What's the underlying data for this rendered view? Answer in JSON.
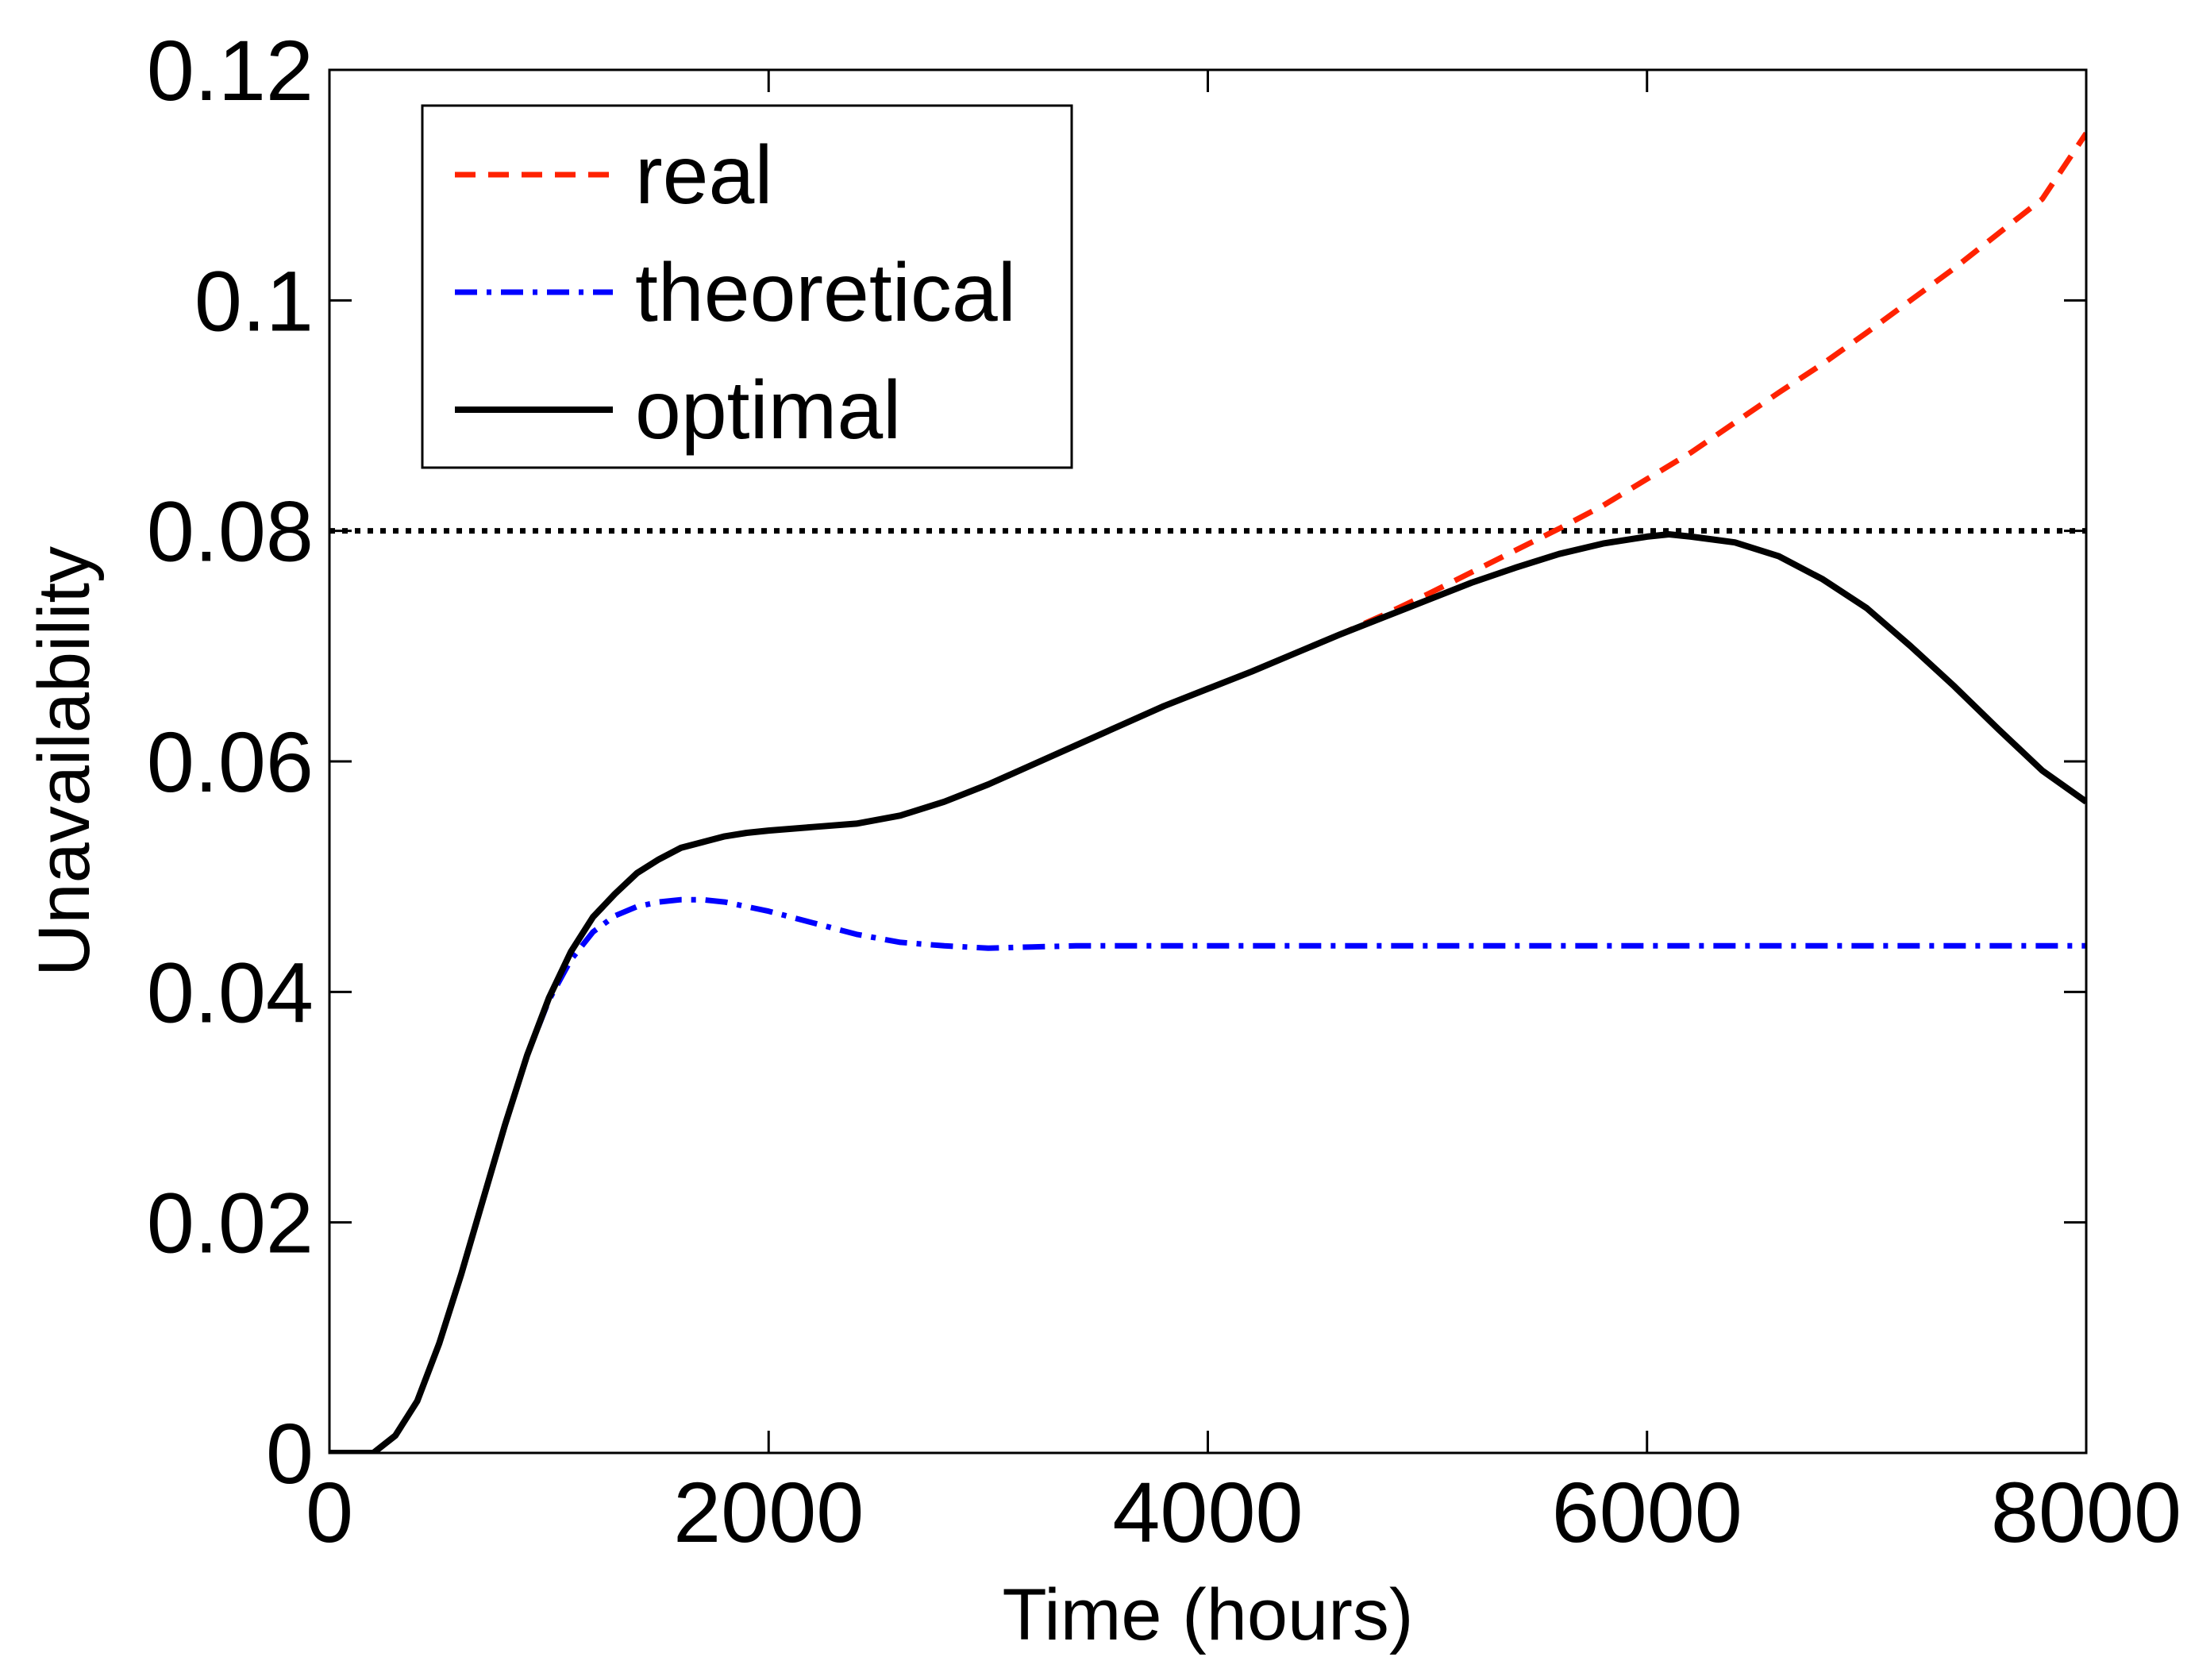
{
  "chart_data": {
    "type": "line",
    "title": "",
    "xlabel": "Time (hours)",
    "ylabel": "Unavailability",
    "xlim": [
      0,
      8000
    ],
    "ylim": [
      0,
      0.12
    ],
    "xticks": [
      0,
      2000,
      4000,
      6000,
      8000
    ],
    "xtick_labels": [
      "0",
      "2000",
      "4000",
      "6000",
      "8000"
    ],
    "yticks": [
      0,
      0.02,
      0.04,
      0.06,
      0.08,
      0.1,
      0.12
    ],
    "ytick_labels": [
      "0",
      "0.02",
      "0.04",
      "0.06",
      "0.08",
      "0.1",
      "0.12"
    ],
    "grid": false,
    "legend_position": "top-left",
    "threshold": {
      "y": 0.08,
      "style": "dotted",
      "color": "#000000"
    },
    "series": [
      {
        "name": "real",
        "color": "#ff2200",
        "style": "dashed",
        "x": [
          0,
          100,
          200,
          300,
          400,
          500,
          600,
          700,
          800,
          900,
          1000,
          1100,
          1200,
          1300,
          1400,
          1500,
          1600,
          1700,
          1800,
          1900,
          2000,
          2200,
          2400,
          2600,
          2800,
          3000,
          3200,
          3400,
          3600,
          3800,
          4000,
          4200,
          4400,
          4600,
          4800,
          5000,
          5200,
          5400,
          5600,
          5800,
          6000,
          6200,
          6400,
          6600,
          6800,
          7000,
          7200,
          7400,
          7600,
          7800,
          8000
        ],
        "y": [
          0,
          0,
          0,
          0.0015,
          0.0045,
          0.0095,
          0.0155,
          0.022,
          0.0285,
          0.0345,
          0.0395,
          0.0435,
          0.0465,
          0.0485,
          0.0503,
          0.0515,
          0.0525,
          0.053,
          0.0535,
          0.0538,
          0.054,
          0.0543,
          0.0546,
          0.0553,
          0.0565,
          0.058,
          0.0597,
          0.0614,
          0.0631,
          0.0648,
          0.0663,
          0.0678,
          0.0694,
          0.071,
          0.0727,
          0.0745,
          0.0764,
          0.0783,
          0.0802,
          0.0822,
          0.0845,
          0.0868,
          0.0894,
          0.092,
          0.0945,
          0.0972,
          0.1,
          0.1028,
          0.1058,
          0.1088,
          0.1145
        ]
      },
      {
        "name": "theoretical",
        "color": "#0000ff",
        "style": "dashdot",
        "x": [
          0,
          100,
          200,
          300,
          400,
          500,
          600,
          700,
          800,
          900,
          1000,
          1100,
          1200,
          1300,
          1400,
          1500,
          1600,
          1700,
          1800,
          1900,
          2000,
          2200,
          2400,
          2600,
          2800,
          3000,
          3200,
          3400,
          3600,
          4000,
          5000,
          6000,
          7000,
          8000
        ],
        "y": [
          0,
          0,
          0,
          0.0015,
          0.0045,
          0.0095,
          0.0155,
          0.022,
          0.0285,
          0.0345,
          0.0393,
          0.0428,
          0.0452,
          0.0466,
          0.0474,
          0.0478,
          0.048,
          0.048,
          0.0478,
          0.0474,
          0.047,
          0.046,
          0.045,
          0.0443,
          0.044,
          0.0438,
          0.0439,
          0.044,
          0.044,
          0.044,
          0.044,
          0.044,
          0.044,
          0.044
        ]
      },
      {
        "name": "optimal",
        "color": "#000000",
        "style": "solid",
        "x": [
          0,
          100,
          200,
          300,
          400,
          500,
          600,
          700,
          800,
          900,
          1000,
          1100,
          1200,
          1300,
          1400,
          1500,
          1600,
          1700,
          1800,
          1900,
          2000,
          2200,
          2400,
          2600,
          2800,
          3000,
          3200,
          3400,
          3600,
          3800,
          4000,
          4200,
          4400,
          4600,
          4800,
          5000,
          5200,
          5400,
          5600,
          5800,
          6000,
          6100,
          6200,
          6400,
          6600,
          6800,
          7000,
          7200,
          7400,
          7600,
          7800,
          8000
        ],
        "y": [
          0,
          0,
          0,
          0.0015,
          0.0045,
          0.0095,
          0.0155,
          0.022,
          0.0285,
          0.0345,
          0.0395,
          0.0435,
          0.0465,
          0.0485,
          0.0503,
          0.0515,
          0.0525,
          0.053,
          0.0535,
          0.0538,
          0.054,
          0.0543,
          0.0546,
          0.0553,
          0.0565,
          0.058,
          0.0597,
          0.0614,
          0.0631,
          0.0648,
          0.0663,
          0.0678,
          0.0694,
          0.071,
          0.0725,
          0.074,
          0.0755,
          0.0768,
          0.078,
          0.0789,
          0.0795,
          0.0797,
          0.0795,
          0.079,
          0.0778,
          0.0758,
          0.0733,
          0.07,
          0.0665,
          0.0628,
          0.0592,
          0.0565
        ]
      }
    ]
  }
}
